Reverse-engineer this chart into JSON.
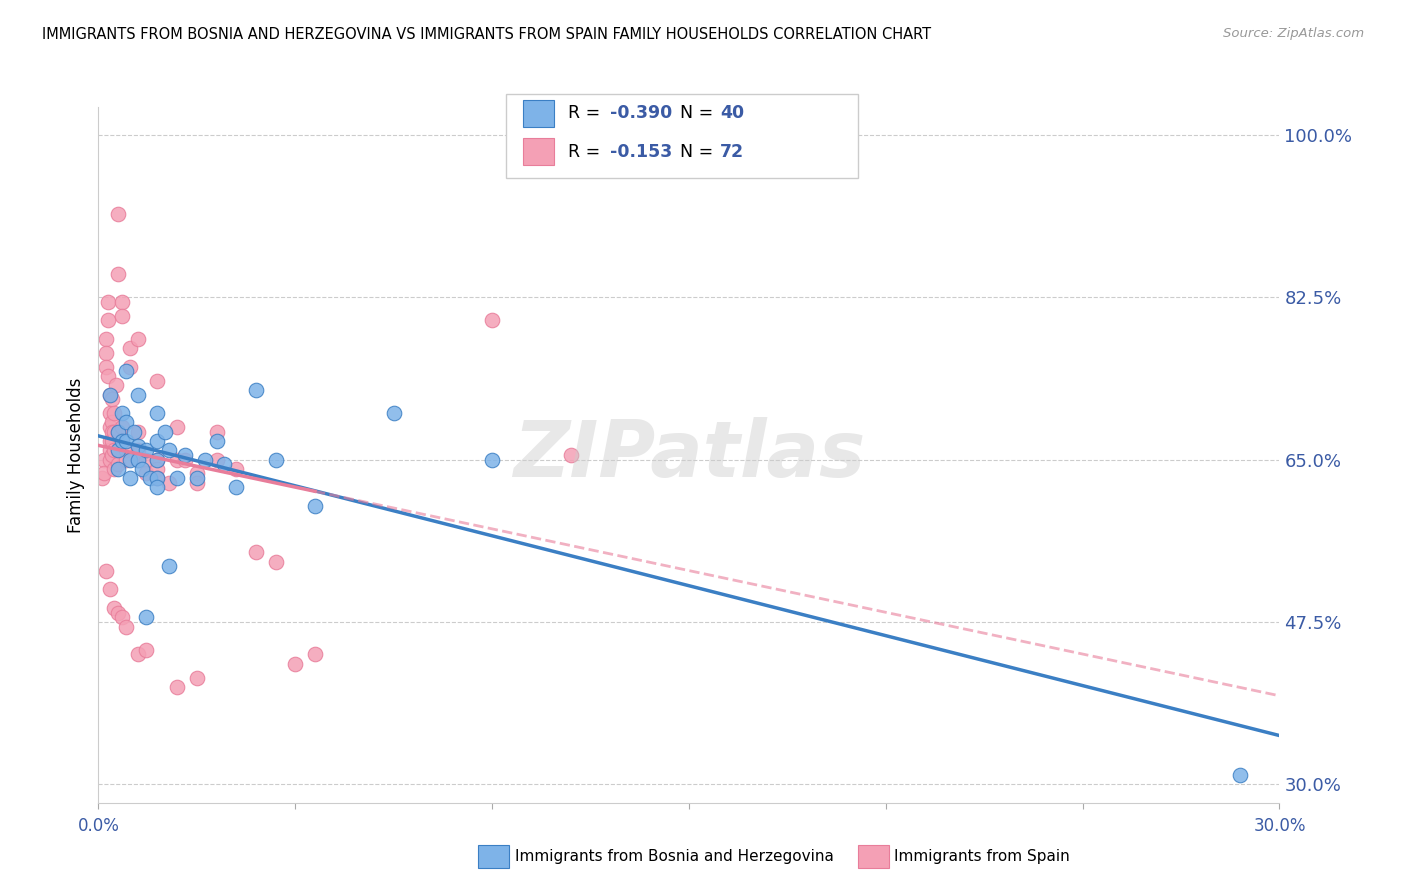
{
  "title": "IMMIGRANTS FROM BOSNIA AND HERZEGOVINA VS IMMIGRANTS FROM SPAIN FAMILY HOUSEHOLDS CORRELATION CHART",
  "source": "Source: ZipAtlas.com",
  "ylabel": "Family Households",
  "yticks": [
    100.0,
    82.5,
    65.0,
    47.5,
    30.0
  ],
  "ytick_labels": [
    "100.0%",
    "82.5%",
    "65.0%",
    "47.5%",
    "30.0%"
  ],
  "xmin": 0.0,
  "xmax": 30.0,
  "ymin": 28.0,
  "ymax": 103.0,
  "legend_blue_r": "-0.390",
  "legend_blue_n": "40",
  "legend_pink_r": "-0.153",
  "legend_pink_n": "72",
  "color_blue": "#7EB3E8",
  "color_pink": "#F4A0B5",
  "color_blue_line": "#3B7FC4",
  "color_pink_line": "#E87D9A",
  "legend_text_color": "#3B5BA5",
  "axis_color": "#3B5BA5",
  "watermark_text": "ZIPatlas",
  "scatter_blue": [
    [
      0.3,
      72.0
    ],
    [
      0.5,
      68.0
    ],
    [
      0.5,
      66.0
    ],
    [
      0.5,
      64.0
    ],
    [
      0.6,
      70.0
    ],
    [
      0.6,
      67.0
    ],
    [
      0.7,
      74.5
    ],
    [
      0.7,
      69.0
    ],
    [
      0.7,
      67.0
    ],
    [
      0.8,
      65.0
    ],
    [
      0.8,
      63.0
    ],
    [
      0.9,
      68.0
    ],
    [
      1.0,
      72.0
    ],
    [
      1.0,
      66.5
    ],
    [
      1.0,
      65.0
    ],
    [
      1.1,
      64.0
    ],
    [
      1.2,
      66.0
    ],
    [
      1.3,
      63.0
    ],
    [
      1.5,
      70.0
    ],
    [
      1.5,
      67.0
    ],
    [
      1.5,
      65.0
    ],
    [
      1.5,
      63.0
    ],
    [
      1.5,
      62.0
    ],
    [
      1.7,
      68.0
    ],
    [
      1.8,
      66.0
    ],
    [
      2.0,
      63.0
    ],
    [
      2.2,
      65.5
    ],
    [
      2.5,
      63.0
    ],
    [
      2.7,
      65.0
    ],
    [
      3.0,
      67.0
    ],
    [
      3.2,
      64.5
    ],
    [
      3.5,
      62.0
    ],
    [
      4.0,
      72.5
    ],
    [
      4.5,
      65.0
    ],
    [
      5.5,
      60.0
    ],
    [
      7.5,
      70.0
    ],
    [
      10.0,
      65.0
    ],
    [
      1.8,
      53.5
    ],
    [
      1.2,
      48.0
    ],
    [
      29.0,
      31.0
    ]
  ],
  "scatter_pink": [
    [
      0.1,
      63.0
    ],
    [
      0.15,
      65.0
    ],
    [
      0.15,
      63.5
    ],
    [
      0.2,
      78.0
    ],
    [
      0.2,
      76.5
    ],
    [
      0.2,
      75.0
    ],
    [
      0.25,
      82.0
    ],
    [
      0.25,
      80.0
    ],
    [
      0.25,
      74.0
    ],
    [
      0.3,
      72.0
    ],
    [
      0.3,
      70.0
    ],
    [
      0.3,
      68.5
    ],
    [
      0.3,
      67.0
    ],
    [
      0.3,
      66.0
    ],
    [
      0.3,
      65.0
    ],
    [
      0.35,
      71.5
    ],
    [
      0.35,
      69.0
    ],
    [
      0.35,
      68.0
    ],
    [
      0.35,
      67.0
    ],
    [
      0.35,
      65.5
    ],
    [
      0.4,
      70.0
    ],
    [
      0.4,
      68.0
    ],
    [
      0.4,
      66.0
    ],
    [
      0.4,
      64.0
    ],
    [
      0.45,
      73.0
    ],
    [
      0.5,
      91.5
    ],
    [
      0.5,
      85.0
    ],
    [
      0.5,
      68.0
    ],
    [
      0.5,
      66.0
    ],
    [
      0.5,
      64.5
    ],
    [
      0.6,
      82.0
    ],
    [
      0.6,
      80.5
    ],
    [
      0.6,
      68.5
    ],
    [
      0.7,
      66.0
    ],
    [
      0.7,
      65.0
    ],
    [
      0.8,
      77.0
    ],
    [
      0.8,
      75.0
    ],
    [
      1.0,
      78.0
    ],
    [
      1.0,
      68.0
    ],
    [
      1.0,
      66.0
    ],
    [
      1.0,
      65.0
    ],
    [
      1.2,
      65.0
    ],
    [
      1.2,
      63.5
    ],
    [
      1.5,
      73.5
    ],
    [
      1.5,
      65.0
    ],
    [
      1.5,
      64.0
    ],
    [
      1.5,
      63.0
    ],
    [
      1.8,
      62.5
    ],
    [
      2.0,
      68.5
    ],
    [
      2.0,
      65.0
    ],
    [
      2.2,
      65.0
    ],
    [
      2.5,
      63.5
    ],
    [
      2.5,
      62.5
    ],
    [
      3.0,
      68.0
    ],
    [
      3.0,
      65.0
    ],
    [
      3.5,
      64.0
    ],
    [
      4.0,
      55.0
    ],
    [
      4.5,
      54.0
    ],
    [
      5.0,
      43.0
    ],
    [
      5.5,
      44.0
    ],
    [
      0.2,
      53.0
    ],
    [
      0.3,
      51.0
    ],
    [
      0.4,
      49.0
    ],
    [
      0.5,
      48.5
    ],
    [
      0.6,
      48.0
    ],
    [
      0.7,
      47.0
    ],
    [
      1.0,
      44.0
    ],
    [
      1.2,
      44.5
    ],
    [
      2.0,
      40.5
    ],
    [
      2.5,
      41.5
    ],
    [
      10.0,
      80.0
    ],
    [
      12.0,
      65.5
    ]
  ]
}
